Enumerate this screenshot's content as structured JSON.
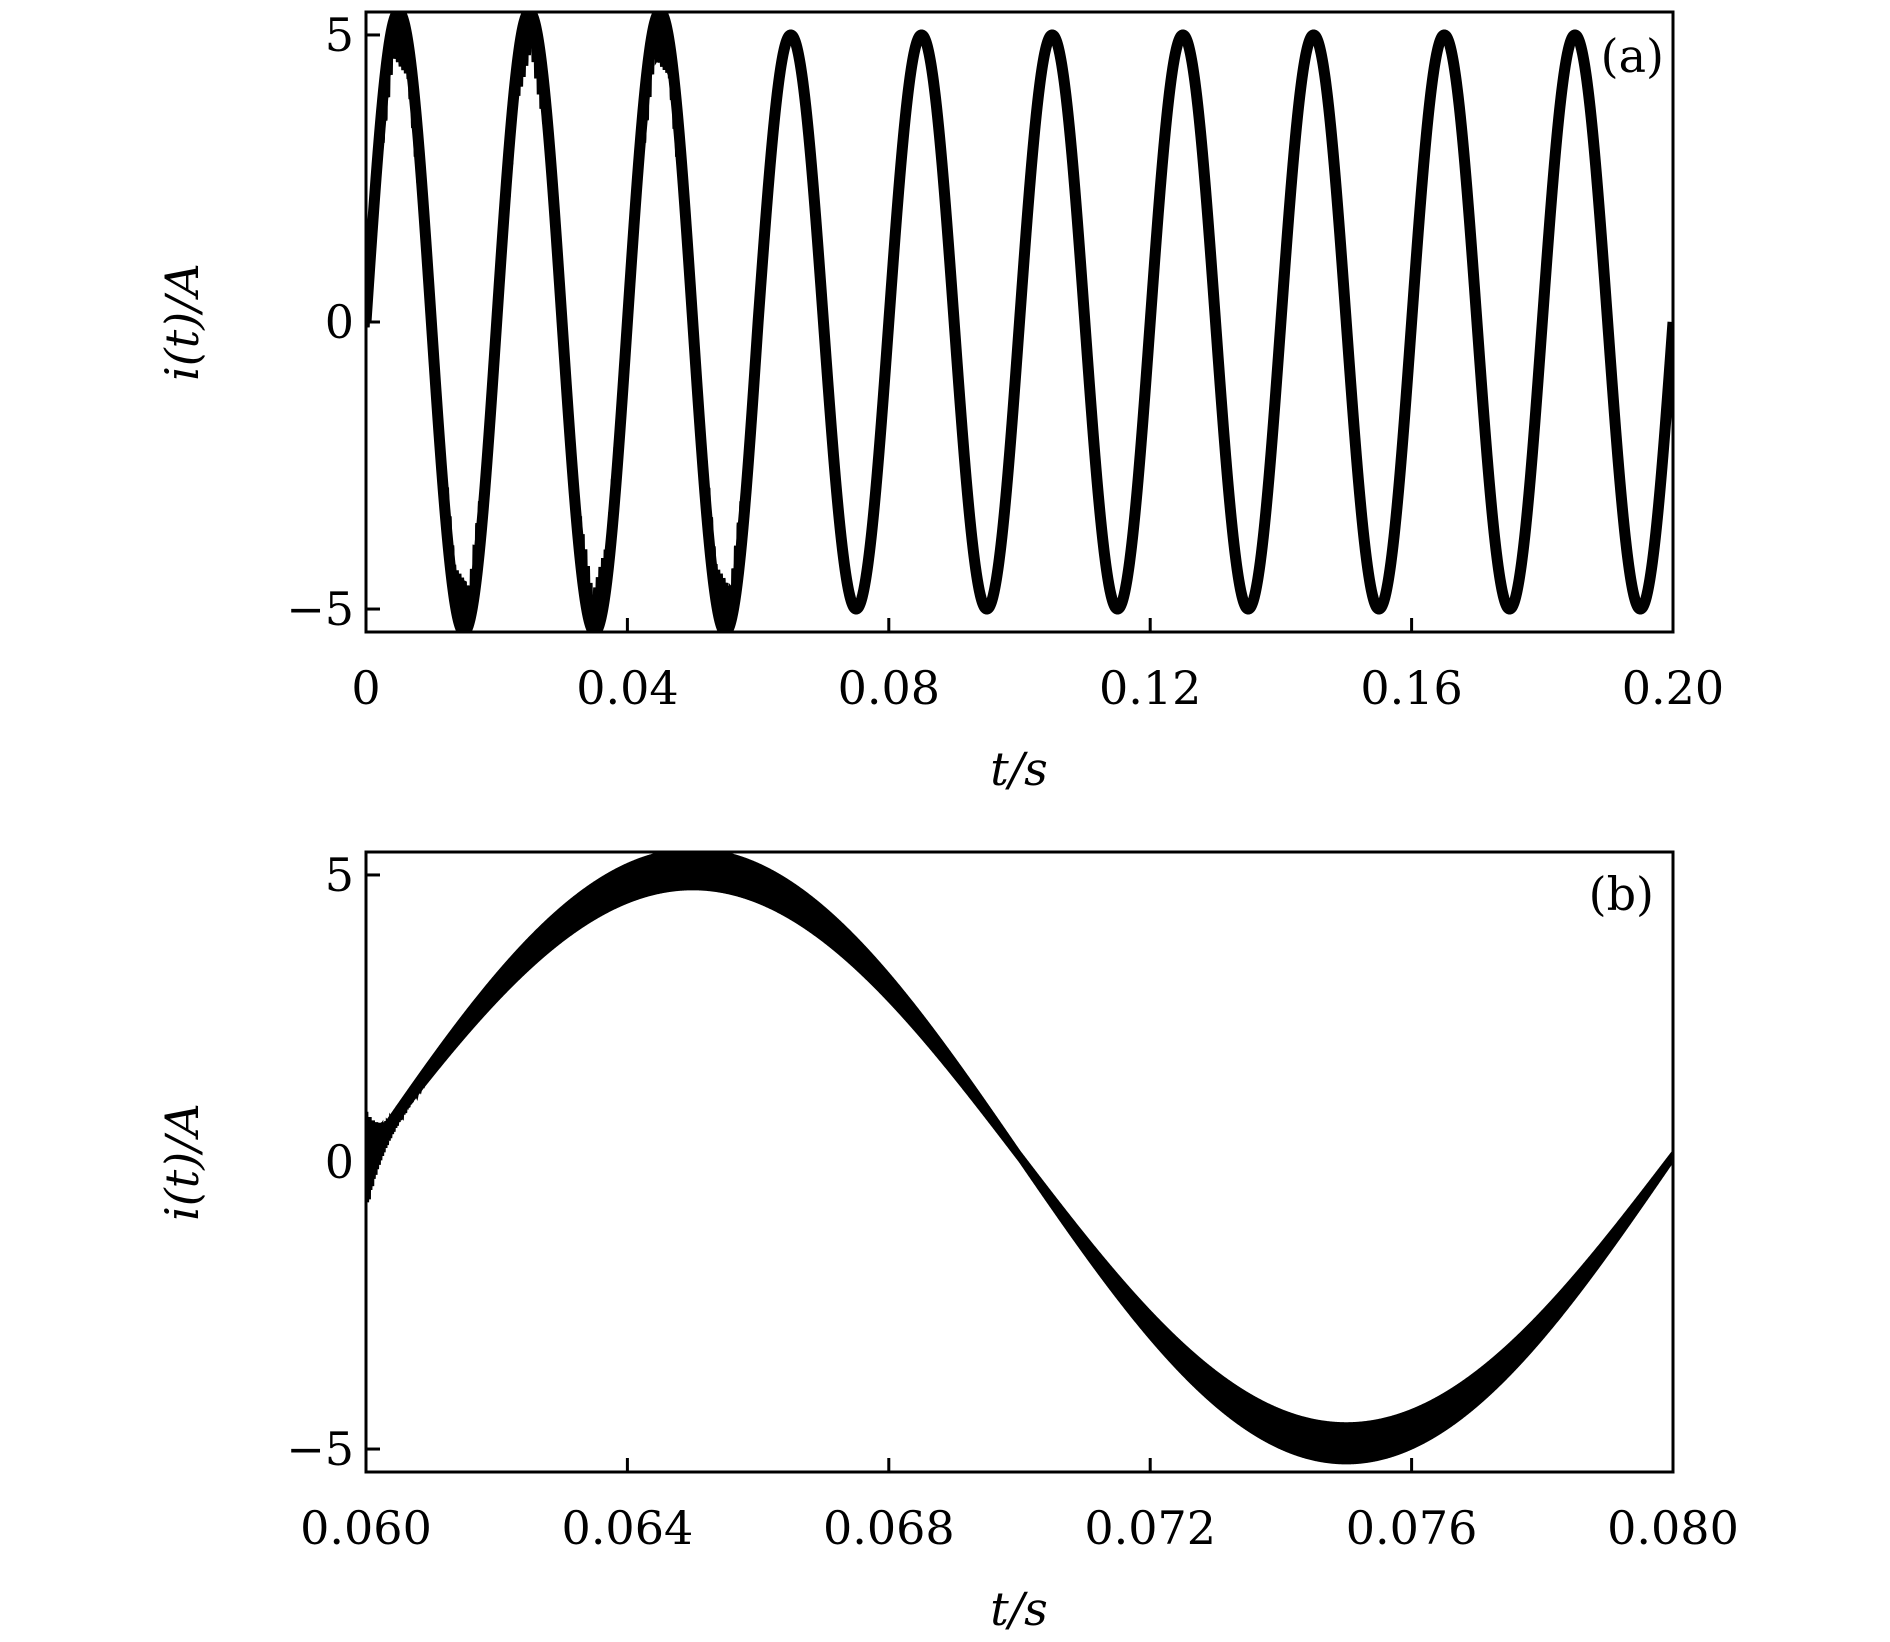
{
  "chart_data": [
    {
      "type": "line",
      "panel_label": "(a)",
      "xlabel": "t/s",
      "ylabel": "i(t)/A",
      "xlim": [
        0,
        0.2
      ],
      "ylim": [
        -5.4,
        5.4
      ],
      "xticks": [
        {
          "value": 0,
          "label": "0"
        },
        {
          "value": 0.04,
          "label": "0.04"
        },
        {
          "value": 0.08,
          "label": "0.08"
        },
        {
          "value": 0.12,
          "label": "0.12"
        },
        {
          "value": 0.16,
          "label": "0.16"
        },
        {
          "value": 0.2,
          "label": "0.20"
        }
      ],
      "yticks": [
        {
          "value": -5,
          "label": "−5"
        },
        {
          "value": 0,
          "label": "0"
        },
        {
          "value": 5,
          "label": "5"
        }
      ],
      "series": [
        {
          "color": "#000000",
          "waveform": "sine",
          "frequency_hz": 50,
          "amplitude_a": 5,
          "transient_end_s": 0.06,
          "transient_peak_a": 5.4
        }
      ],
      "legend": "none",
      "grid": false
    },
    {
      "type": "line",
      "panel_label": "(b)",
      "xlabel": "t/s",
      "ylabel": "i(t)/A",
      "xlim": [
        0.06,
        0.08
      ],
      "ylim": [
        -5.4,
        5.4
      ],
      "xticks": [
        {
          "value": 0.06,
          "label": "0.060"
        },
        {
          "value": 0.064,
          "label": "0.064"
        },
        {
          "value": 0.068,
          "label": "0.068"
        },
        {
          "value": 0.072,
          "label": "0.072"
        },
        {
          "value": 0.076,
          "label": "0.076"
        },
        {
          "value": 0.08,
          "label": "0.080"
        }
      ],
      "yticks": [
        {
          "value": -5,
          "label": "−5"
        },
        {
          "value": 0,
          "label": "0"
        },
        {
          "value": 5,
          "label": "5"
        }
      ],
      "series": [
        {
          "color": "#000000",
          "waveform": "sine",
          "frequency_hz": 50,
          "amplitude_a": 5,
          "ripple_a": 0.35,
          "start_transient_a": 0.9
        }
      ],
      "legend": "none",
      "grid": false
    }
  ]
}
